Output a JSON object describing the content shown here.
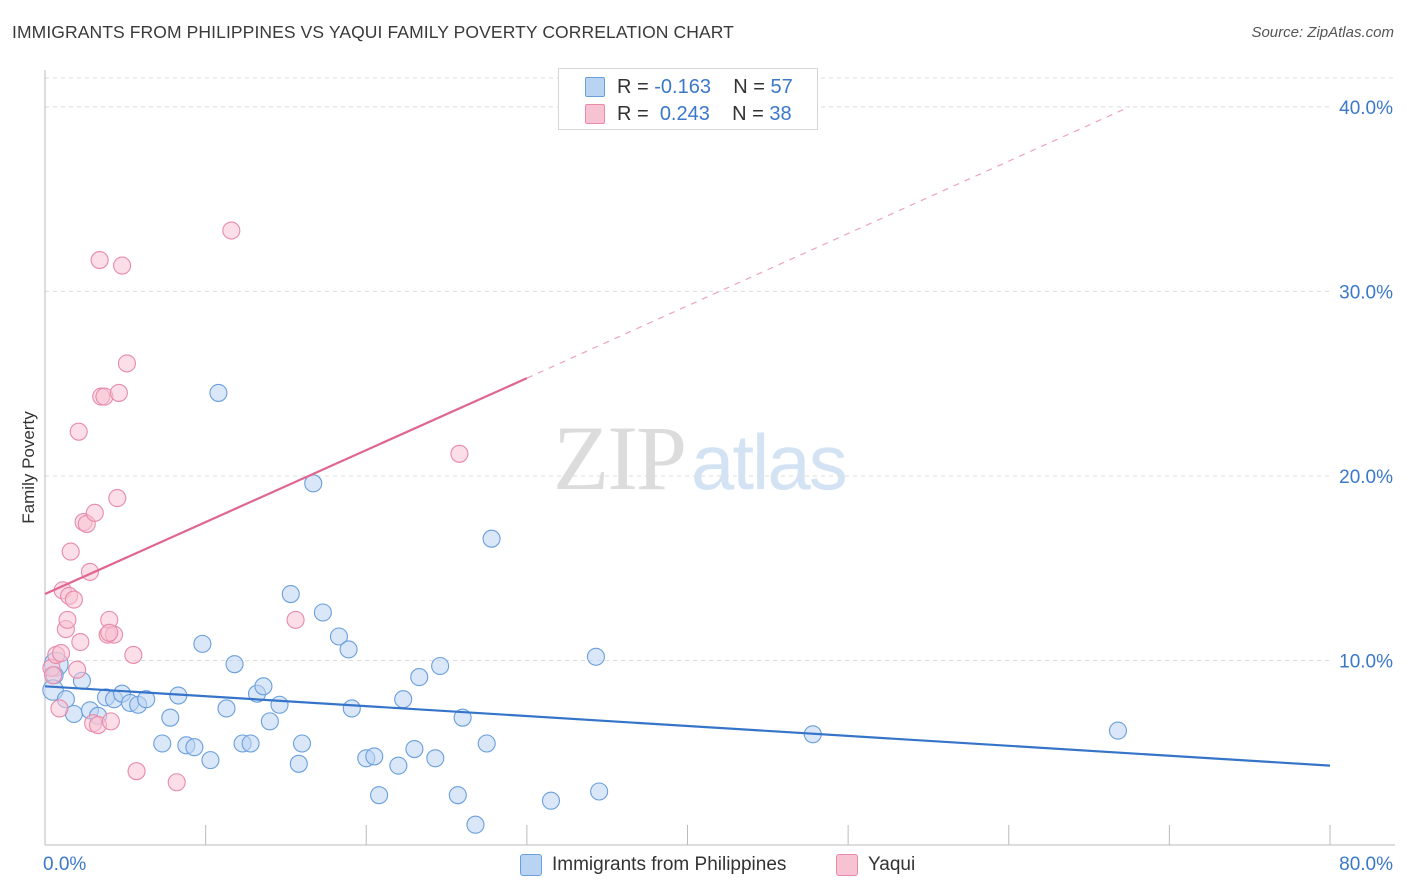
{
  "header": {
    "title": "IMMIGRANTS FROM PHILIPPINES VS YAQUI FAMILY POVERTY CORRELATION CHART",
    "source": "Source: ZipAtlas.com"
  },
  "watermark": {
    "zip": "ZIP",
    "atlas": "atlas"
  },
  "legend_top": {
    "rows": [
      {
        "r_label": "R =",
        "r_value": "-0.163",
        "n_label": "N =",
        "n_value": "57"
      },
      {
        "r_label": "R =",
        "r_value": "0.243",
        "n_label": "N =",
        "n_value": "38"
      }
    ]
  },
  "legend_bottom": {
    "items": [
      {
        "label": "Immigrants from Philippines"
      },
      {
        "label": "Yaqui"
      }
    ]
  },
  "colors": {
    "blue_fill": "#b9d3f3",
    "blue_stroke": "#6a9fdc",
    "blue_line": "#3574c8",
    "pink_fill": "#f7c3d3",
    "pink_stroke": "#e88aa9",
    "pink_line": "#e06690",
    "axis_text": "#3a78c9",
    "grid": "#dcdcdc"
  },
  "chart_data": {
    "type": "scatter",
    "title": "IMMIGRANTS FROM PHILIPPINES VS YAQUI FAMILY POVERTY CORRELATION CHART",
    "xlabel": "",
    "ylabel": "Family Poverty",
    "xlim": [
      0,
      80
    ],
    "ylim": [
      0,
      42
    ],
    "x_tick_labels": [
      {
        "value": 0,
        "label": "0.0%"
      },
      {
        "value": 80,
        "label": "80.0%"
      }
    ],
    "y_tick_labels": [
      {
        "value": 10,
        "label": "10.0%"
      },
      {
        "value": 20,
        "label": "20.0%"
      },
      {
        "value": 30,
        "label": "30.0%"
      },
      {
        "value": 40,
        "label": "40.0%"
      }
    ],
    "series": [
      {
        "name": "Immigrants from Philippines",
        "color": "blue",
        "R": -0.163,
        "N": 57,
        "trend": {
          "x0": 0,
          "y0": 8.6,
          "x1": 80,
          "y1": 4.3
        },
        "points": [
          [
            0.7,
            9.8,
            14
          ],
          [
            0.6,
            9.2,
            10
          ],
          [
            0.5,
            8.4,
            12
          ],
          [
            1.3,
            7.9,
            10
          ],
          [
            1.8,
            7.1,
            10
          ],
          [
            2.3,
            8.9,
            10
          ],
          [
            2.8,
            7.3,
            10
          ],
          [
            3.3,
            7.0,
            10
          ],
          [
            3.8,
            8.0,
            10
          ],
          [
            4.3,
            7.9,
            10
          ],
          [
            4.8,
            8.2,
            10
          ],
          [
            5.3,
            7.7,
            10
          ],
          [
            5.8,
            7.6,
            10
          ],
          [
            6.3,
            7.9,
            10
          ],
          [
            7.3,
            5.5,
            10
          ],
          [
            7.8,
            6.9,
            10
          ],
          [
            8.3,
            8.1,
            10
          ],
          [
            8.8,
            5.4,
            10
          ],
          [
            9.3,
            5.3,
            10
          ],
          [
            9.8,
            10.9,
            10
          ],
          [
            10.3,
            4.6,
            10
          ],
          [
            10.8,
            24.5,
            10
          ],
          [
            11.3,
            7.4,
            10
          ],
          [
            11.8,
            9.8,
            10
          ],
          [
            12.3,
            5.5,
            10
          ],
          [
            12.8,
            5.5,
            10
          ],
          [
            13.2,
            8.2,
            10
          ],
          [
            13.6,
            8.6,
            10
          ],
          [
            14.0,
            6.7,
            10
          ],
          [
            14.6,
            7.6,
            10
          ],
          [
            15.3,
            13.6,
            10
          ],
          [
            15.8,
            4.4,
            10
          ],
          [
            16.0,
            5.5,
            10
          ],
          [
            16.7,
            19.6,
            10
          ],
          [
            17.3,
            12.6,
            10
          ],
          [
            18.3,
            11.3,
            10
          ],
          [
            18.9,
            10.6,
            10
          ],
          [
            19.1,
            7.4,
            10
          ],
          [
            20.0,
            4.7,
            10
          ],
          [
            20.5,
            4.8,
            10
          ],
          [
            20.8,
            2.7,
            10
          ],
          [
            22.0,
            4.3,
            10
          ],
          [
            22.3,
            7.9,
            10
          ],
          [
            23.0,
            5.2,
            10
          ],
          [
            23.3,
            9.1,
            10
          ],
          [
            24.3,
            4.7,
            10
          ],
          [
            24.6,
            9.7,
            10
          ],
          [
            25.7,
            2.7,
            10
          ],
          [
            26.0,
            6.9,
            10
          ],
          [
            26.8,
            1.1,
            10
          ],
          [
            27.5,
            5.5,
            10
          ],
          [
            27.8,
            16.6,
            10
          ],
          [
            31.5,
            2.4,
            10
          ],
          [
            34.3,
            10.2,
            10
          ],
          [
            34.5,
            2.9,
            10
          ],
          [
            47.8,
            6.0,
            10
          ],
          [
            66.8,
            6.2,
            10
          ]
        ]
      },
      {
        "name": "Yaqui",
        "color": "pink",
        "R": 0.243,
        "N": 38,
        "trend": {
          "x0": 0,
          "y0": 13.6,
          "x1": 30,
          "y1": 25.3
        },
        "trend_dashed": {
          "x0": 30,
          "y0": 25.3,
          "x1": 67.5,
          "y1": 40.0
        },
        "points": [
          [
            0.4,
            9.6,
            10
          ],
          [
            0.5,
            9.2,
            10
          ],
          [
            0.7,
            10.3,
            10
          ],
          [
            0.9,
            7.4,
            10
          ],
          [
            1.0,
            10.4,
            10
          ],
          [
            1.1,
            13.8,
            10
          ],
          [
            1.3,
            11.7,
            10
          ],
          [
            1.4,
            12.2,
            10
          ],
          [
            1.5,
            13.5,
            10
          ],
          [
            1.6,
            15.9,
            10
          ],
          [
            1.8,
            13.3,
            10
          ],
          [
            2.0,
            9.5,
            10
          ],
          [
            2.1,
            22.4,
            10
          ],
          [
            2.2,
            11.0,
            10
          ],
          [
            2.4,
            17.5,
            10
          ],
          [
            2.6,
            17.4,
            10
          ],
          [
            2.8,
            14.8,
            10
          ],
          [
            3.0,
            6.6,
            10
          ],
          [
            3.1,
            18.0,
            10
          ],
          [
            3.3,
            6.5,
            10
          ],
          [
            3.4,
            31.7,
            10
          ],
          [
            3.5,
            24.3,
            10
          ],
          [
            3.7,
            24.3,
            10
          ],
          [
            3.9,
            11.4,
            10
          ],
          [
            4.0,
            12.2,
            10
          ],
          [
            4.3,
            11.4,
            10
          ],
          [
            4.0,
            11.5,
            10
          ],
          [
            4.1,
            6.7,
            10
          ],
          [
            4.5,
            18.8,
            10
          ],
          [
            4.6,
            24.5,
            10
          ],
          [
            4.8,
            31.4,
            10
          ],
          [
            5.1,
            26.1,
            10
          ],
          [
            5.5,
            10.3,
            10
          ],
          [
            5.7,
            4.0,
            10
          ],
          [
            8.2,
            3.4,
            10
          ],
          [
            11.6,
            33.3,
            10
          ],
          [
            15.6,
            12.2,
            10
          ],
          [
            25.8,
            21.2,
            10
          ]
        ]
      }
    ]
  }
}
